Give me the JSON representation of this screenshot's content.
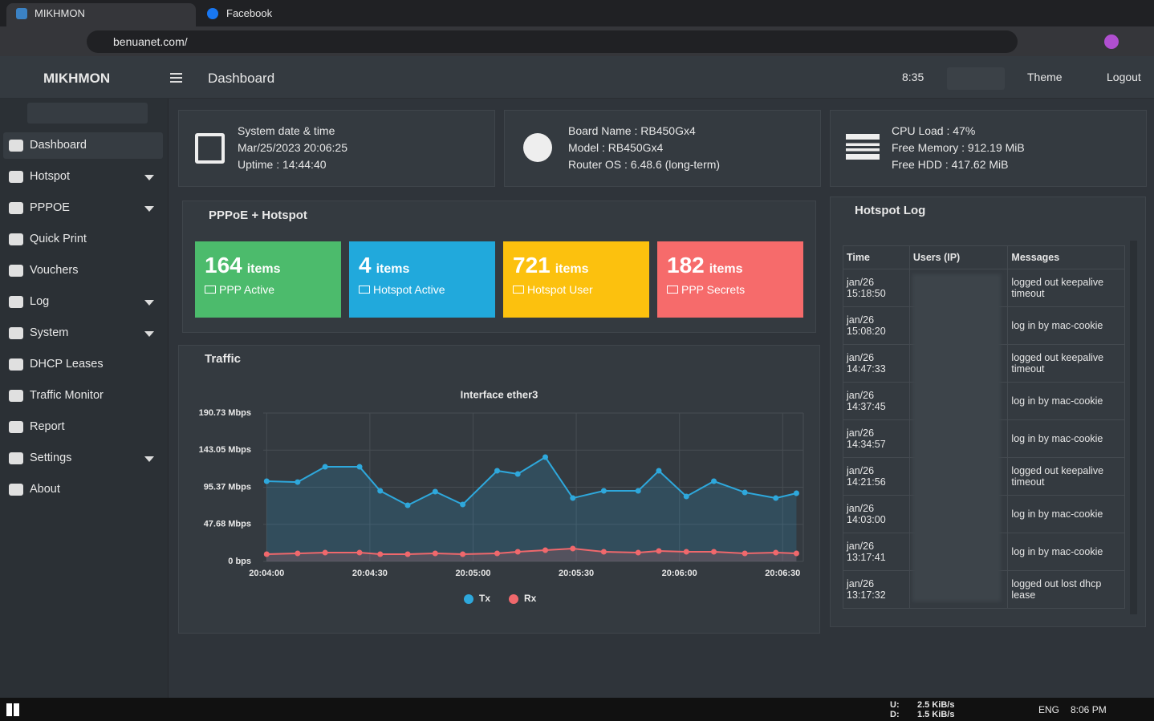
{
  "browser": {
    "tabs": [
      {
        "title": "MIKHMON"
      },
      {
        "title": "Facebook"
      }
    ],
    "url": "benuanet.com/"
  },
  "header": {
    "brand": "MIKHMON",
    "page": "Dashboard",
    "timer": "8:35",
    "theme": "Theme",
    "logout": "Logout"
  },
  "sidebar": [
    "Dashboard",
    "Hotspot",
    "PPPOE",
    "Quick Print",
    "Vouchers",
    "Log",
    "System",
    "DHCP Leases",
    "Traffic Monitor",
    "Report",
    "Settings",
    "About"
  ],
  "info_cards": [
    {
      "lines": [
        "System date & time",
        "Mar/25/2023 20:06:25",
        "Uptime : 14:44:40"
      ]
    },
    {
      "lines": [
        "Board Name : RB450Gx4",
        "Model : RB450Gx4",
        "Router OS : 6.48.6 (long-term)"
      ]
    },
    {
      "lines": [
        "CPU Load : 47%",
        "Free Memory : 912.19 MiB",
        "Free HDD : 417.62 MiB"
      ]
    }
  ],
  "pppoe": {
    "title": "PPPoE + Hotspot",
    "unit": "items",
    "boxes": [
      {
        "count": 164,
        "label": "PPP Active",
        "color": "#4cbb6c"
      },
      {
        "count": 4,
        "label": "Hotspot Active",
        "color": "#21a9dc"
      },
      {
        "count": 721,
        "label": "Hotspot User",
        "color": "#fcc10e"
      },
      {
        "count": 182,
        "label": "PPP Secrets",
        "color": "#f66b6b"
      }
    ]
  },
  "traffic": {
    "title": "Traffic",
    "chart_data": {
      "type": "line",
      "title": "Interface ether3",
      "x": [
        "20:04:00",
        "20:04:09",
        "20:04:17",
        "20:04:27",
        "20:04:33",
        "20:04:41",
        "20:04:49",
        "20:04:57",
        "20:05:07",
        "20:05:13",
        "20:05:21",
        "20:05:29",
        "20:05:38",
        "20:05:48",
        "20:05:54",
        "20:06:02",
        "20:06:10",
        "20:06:19",
        "20:06:28",
        "20:06:34"
      ],
      "xlim": [
        "20:03:59",
        "20:06:36"
      ],
      "xticks": [
        "20:04:00",
        "20:04:30",
        "20:05:00",
        "20:05:30",
        "20:06:00",
        "20:06:30"
      ],
      "ylim": [
        0,
        190.73
      ],
      "yticks": [
        {
          "value": 0,
          "label": "0 bps"
        },
        {
          "value": 47.68,
          "label": "47.68 Mbps"
        },
        {
          "value": 95.37,
          "label": "95.37 Mbps"
        },
        {
          "value": 143.05,
          "label": "143.05 Mbps"
        },
        {
          "value": 190.73,
          "label": "190.73 Mbps"
        }
      ],
      "grid": true,
      "series": [
        {
          "name": "Tx",
          "color": "#2ea8dc",
          "values": [
            103.1,
            102,
            121.6,
            121.6,
            90.7,
            72.2,
            89.7,
            73.2,
            116.5,
            112.4,
            134,
            81.4,
            90.7,
            90.7,
            116.5,
            83.5,
            103.1,
            88.7,
            81.4,
            87.6
          ]
        },
        {
          "name": "Rx",
          "color": "#f0686c",
          "values": [
            9.3,
            10.3,
            11.3,
            11.3,
            9.3,
            9.3,
            10.3,
            9.3,
            10.3,
            12.4,
            14.4,
            16.5,
            12.4,
            11.3,
            13.4,
            12.4,
            12.4,
            10.3,
            11.3,
            10.3
          ]
        }
      ]
    }
  },
  "hotspot_log": {
    "title": "Hotspot Log",
    "columns": [
      "Time",
      "Users (IP)",
      "Messages"
    ],
    "rows": [
      [
        "jan/26",
        "15:18:50",
        "logged out keepalive timeout"
      ],
      [
        "jan/26",
        "15:08:20",
        "log in by mac-cookie"
      ],
      [
        "jan/26",
        "14:47:33",
        "logged out keepalive timeout"
      ],
      [
        "jan/26",
        "14:37:45",
        "log in by mac-cookie"
      ],
      [
        "jan/26",
        "14:34:57",
        "log in by mac-cookie"
      ],
      [
        "jan/26",
        "14:21:56",
        "logged out keepalive timeout"
      ],
      [
        "jan/26",
        "14:03:00",
        "log in by mac-cookie"
      ],
      [
        "jan/26",
        "13:17:41",
        "log in by mac-cookie"
      ],
      [
        "jan/26",
        "13:17:32",
        "logged out lost dhcp lease"
      ]
    ]
  },
  "taskbar": {
    "up_label": "U:",
    "up": "2.5 KiB/s",
    "down_label": "D:",
    "down": "1.5 KiB/s",
    "lang": "ENG",
    "clock": "8:06 PM"
  }
}
